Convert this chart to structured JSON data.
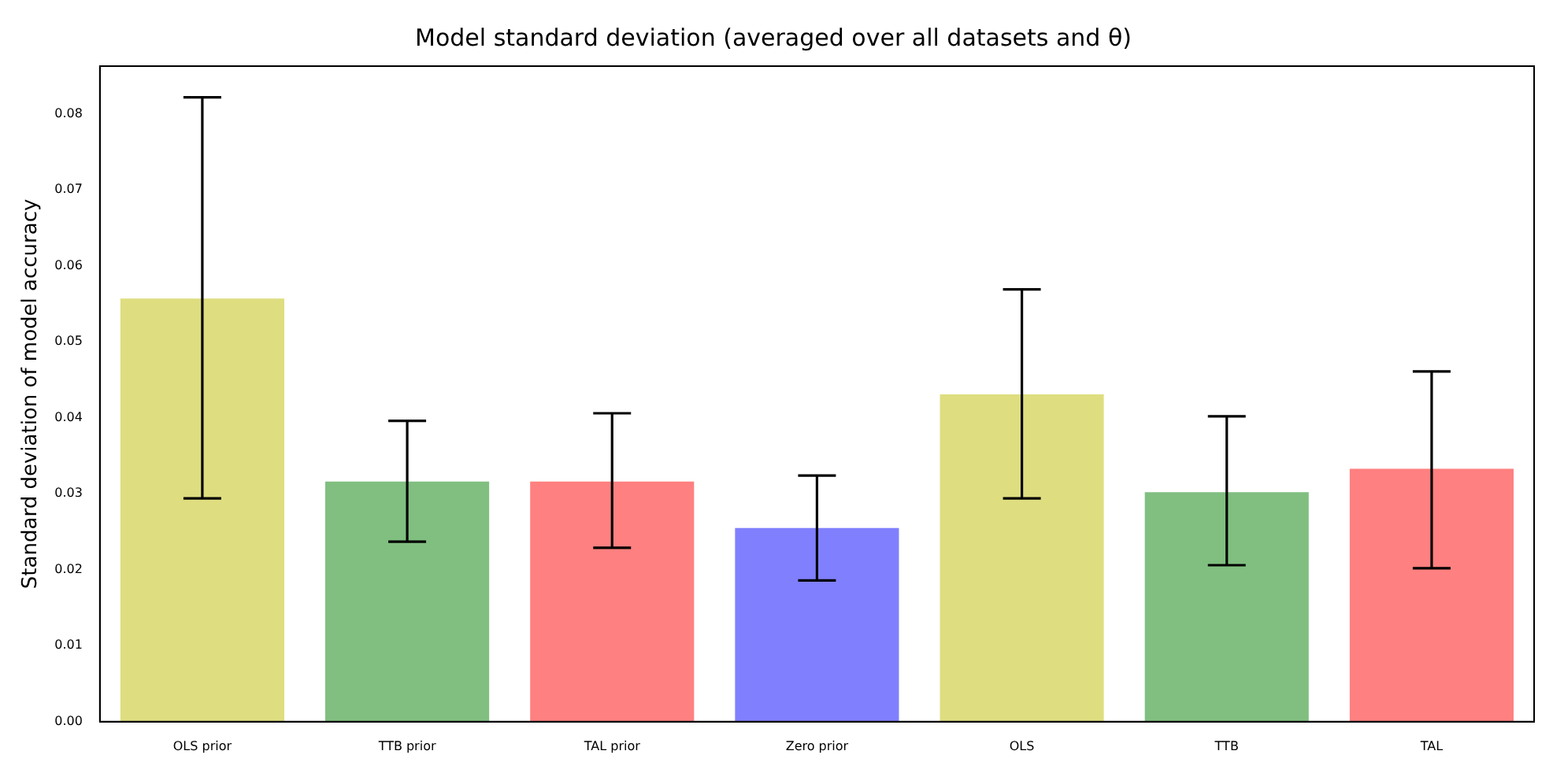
{
  "chart_data": {
    "type": "bar",
    "title": "Model standard deviation (averaged over all datasets and θ)",
    "ylabel": "Standard deviation of model accuracy",
    "categories": [
      "OLS prior",
      "TTB prior",
      "TAL prior",
      "Zero prior",
      "OLS",
      "TTB",
      "TAL"
    ],
    "values": [
      0.0557,
      0.0316,
      0.0316,
      0.0255,
      0.0431,
      0.0302,
      0.0333
    ],
    "errors": [
      [
        0.0294,
        0.0822
      ],
      [
        0.0237,
        0.0396
      ],
      [
        0.0229,
        0.0406
      ],
      [
        0.0186,
        0.0324
      ],
      [
        0.0294,
        0.0569
      ],
      [
        0.0206,
        0.0402
      ],
      [
        0.0202,
        0.0461
      ]
    ],
    "colors": [
      "#dede80",
      "#80bf80",
      "#ff8080",
      "#8080ff",
      "#dede80",
      "#80bf80",
      "#ff8080"
    ],
    "ylim": [
      0,
      0.0863
    ],
    "yticks": [
      {
        "value": 0,
        "label": "0.00"
      },
      0.01,
      0.02,
      0.03,
      0.04,
      0.05,
      0.06,
      0.07,
      0.08
    ],
    "grid": false,
    "legend": false
  }
}
